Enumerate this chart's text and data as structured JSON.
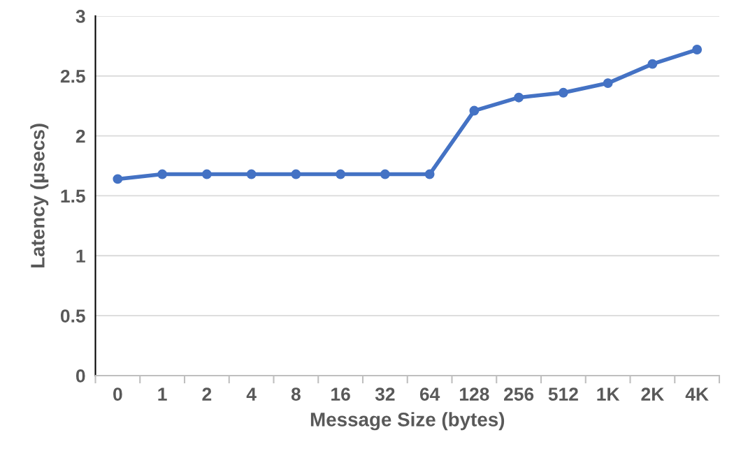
{
  "chart_data": {
    "type": "line",
    "xlabel": "Message Size (bytes)",
    "ylabel": "Latency (µsecs)",
    "categories": [
      "0",
      "1",
      "2",
      "4",
      "8",
      "16",
      "32",
      "64",
      "128",
      "256",
      "512",
      "1K",
      "2K",
      "4K"
    ],
    "series": [
      {
        "color": "#4472c4",
        "values": [
          1.64,
          1.68,
          1.68,
          1.68,
          1.68,
          1.68,
          1.68,
          1.68,
          2.21,
          2.32,
          2.36,
          2.44,
          2.6,
          2.72
        ]
      }
    ],
    "ylim": [
      0,
      3
    ],
    "yticks": [
      0,
      0.5,
      1,
      1.5,
      2,
      2.5,
      3
    ],
    "grid": "y",
    "marker": "circle",
    "line_style": "solid"
  }
}
